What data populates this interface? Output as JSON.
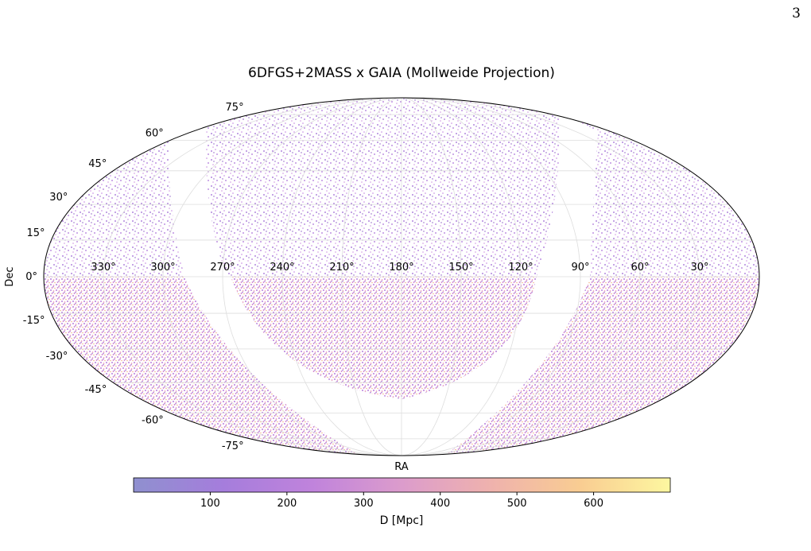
{
  "page_number": "3",
  "chart_data": {
    "type": "scatter",
    "projection": "mollweide",
    "title": "6DFGS+2MASS x GAIA (Mollweide Projection)",
    "xlabel": "RA",
    "ylabel": "Dec",
    "xlim": [
      360,
      0
    ],
    "ylim": [
      -90,
      90
    ],
    "xticks": [
      {
        "value": 330,
        "label": "330°"
      },
      {
        "value": 300,
        "label": "300°"
      },
      {
        "value": 270,
        "label": "270°"
      },
      {
        "value": 240,
        "label": "240°"
      },
      {
        "value": 210,
        "label": "210°"
      },
      {
        "value": 180,
        "label": "180°"
      },
      {
        "value": 150,
        "label": "150°"
      },
      {
        "value": 120,
        "label": "120°"
      },
      {
        "value": 90,
        "label": "90°"
      },
      {
        "value": 60,
        "label": "60°"
      },
      {
        "value": 30,
        "label": "30°"
      }
    ],
    "yticks": [
      {
        "value": -75,
        "label": "-75°"
      },
      {
        "value": -60,
        "label": "-60°"
      },
      {
        "value": -45,
        "label": "-45°"
      },
      {
        "value": -30,
        "label": "-30°"
      },
      {
        "value": -15,
        "label": "-15°"
      },
      {
        "value": 0,
        "label": "0°"
      },
      {
        "value": 15,
        "label": "15°"
      },
      {
        "value": 30,
        "label": "30°"
      },
      {
        "value": 45,
        "label": "45°"
      },
      {
        "value": 60,
        "label": "60°"
      },
      {
        "value": 75,
        "label": "75°"
      }
    ],
    "grid": true,
    "colorbar": {
      "label": "D [Mpc]",
      "clim": [
        0,
        700
      ],
      "ticks": [
        100,
        200,
        300,
        400,
        500,
        600
      ],
      "colors": [
        "#8f90cf",
        "#a57ddc",
        "#c083dc",
        "#dc9ccc",
        "#efb2ad",
        "#f9cd92",
        "#fdf7a0"
      ]
    }
  }
}
